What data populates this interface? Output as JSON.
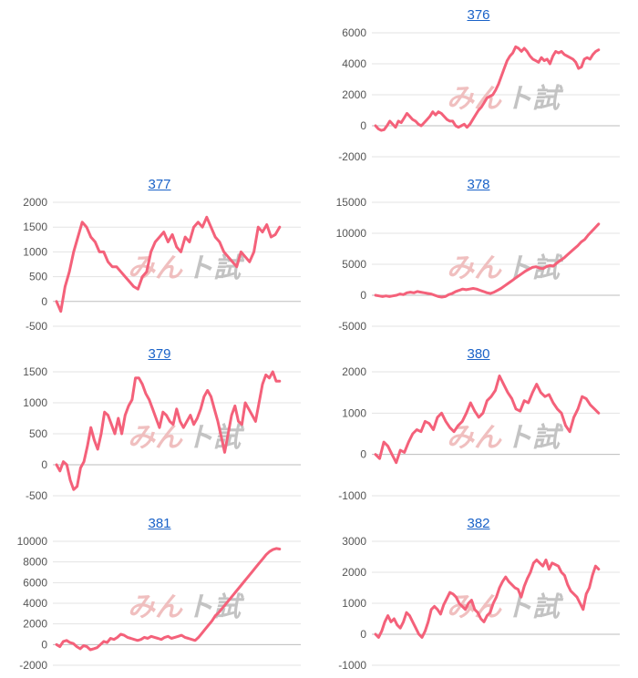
{
  "colors": {
    "line": "#f4617a",
    "grid": "#e3e3e3",
    "axis": "#bdbdbd",
    "tick": "#555555",
    "link": "#1a62c8"
  },
  "watermark": {
    "part1": "みん",
    "part2": "ト試"
  },
  "chart_data": [
    {
      "title": "376",
      "type": "line",
      "ylim": [
        -2000,
        6000
      ],
      "yticks": [
        -2000,
        0,
        2000,
        4000,
        6000
      ],
      "values": [
        0,
        -200,
        -300,
        -250,
        0,
        300,
        100,
        -100,
        300,
        200,
        500,
        800,
        600,
        400,
        300,
        100,
        0,
        200,
        400,
        600,
        900,
        700,
        900,
        800,
        600,
        400,
        300,
        300,
        0,
        -100,
        0,
        100,
        -100,
        100,
        400,
        700,
        1000,
        1200,
        1500,
        1800,
        1900,
        2000,
        2300,
        2700,
        3200,
        3700,
        4200,
        4500,
        4700,
        5100,
        5000,
        4800,
        5000,
        4800,
        4500,
        4300,
        4200,
        4100,
        4400,
        4200,
        4300,
        4000,
        4500,
        4800,
        4700,
        4800,
        4600,
        4500,
        4400,
        4300,
        4100,
        3700,
        3800,
        4300,
        4400,
        4300,
        4600,
        4800,
        4900
      ]
    },
    {
      "title": "377",
      "type": "line",
      "ylim": [
        -500,
        2000
      ],
      "yticks": [
        -500,
        0,
        500,
        1000,
        1500,
        2000
      ],
      "values": [
        0,
        -200,
        300,
        600,
        1000,
        1300,
        1600,
        1500,
        1300,
        1200,
        1000,
        1000,
        800,
        700,
        700,
        600,
        500,
        400,
        300,
        250,
        500,
        600,
        1000,
        1200,
        1300,
        1400,
        1200,
        1350,
        1100,
        1000,
        1300,
        1200,
        1500,
        1600,
        1500,
        1700,
        1500,
        1300,
        1200,
        1000,
        900,
        800,
        700,
        1000,
        900,
        800,
        1000,
        1500,
        1400,
        1550,
        1300,
        1350,
        1500
      ]
    },
    {
      "title": "378",
      "type": "line",
      "ylim": [
        -5000,
        15000
      ],
      "yticks": [
        -5000,
        0,
        5000,
        10000,
        15000
      ],
      "values": [
        0,
        -100,
        -200,
        -100,
        -200,
        -100,
        0,
        200,
        100,
        400,
        500,
        400,
        600,
        500,
        400,
        300,
        200,
        0,
        -200,
        -300,
        -200,
        100,
        300,
        600,
        800,
        1000,
        900,
        1000,
        1100,
        1000,
        800,
        600,
        400,
        300,
        500,
        800,
        1100,
        1500,
        1900,
        2300,
        2700,
        3100,
        3500,
        3900,
        4200,
        4500,
        4600,
        4400,
        4300,
        4600,
        4800,
        4700,
        5200,
        5600,
        6000,
        6500,
        7000,
        7500,
        8000,
        8600,
        9000,
        9700,
        10300,
        10900,
        11500
      ]
    },
    {
      "title": "379",
      "type": "line",
      "ylim": [
        -500,
        1500
      ],
      "yticks": [
        -500,
        0,
        500,
        1000,
        1500
      ],
      "values": [
        0,
        -100,
        50,
        0,
        -250,
        -400,
        -350,
        -50,
        50,
        300,
        600,
        400,
        250,
        500,
        850,
        800,
        650,
        500,
        750,
        500,
        800,
        950,
        1050,
        1400,
        1400,
        1300,
        1150,
        1050,
        900,
        750,
        600,
        850,
        800,
        700,
        650,
        900,
        700,
        600,
        700,
        800,
        650,
        750,
        900,
        1100,
        1200,
        1100,
        900,
        700,
        450,
        200,
        500,
        800,
        950,
        700,
        650,
        1000,
        900,
        800,
        700,
        1000,
        1300,
        1450,
        1400,
        1500,
        1350,
        1350
      ]
    },
    {
      "title": "380",
      "type": "line",
      "ylim": [
        -1000,
        2000
      ],
      "yticks": [
        -1000,
        0,
        1000,
        2000
      ],
      "values": [
        0,
        -100,
        300,
        200,
        0,
        -200,
        100,
        50,
        300,
        500,
        600,
        550,
        800,
        750,
        600,
        900,
        1000,
        800,
        650,
        550,
        700,
        800,
        1000,
        1250,
        1050,
        900,
        1000,
        1300,
        1400,
        1550,
        1900,
        1700,
        1500,
        1350,
        1100,
        1050,
        1300,
        1250,
        1500,
        1700,
        1500,
        1400,
        1450,
        1250,
        1100,
        1000,
        700,
        550,
        900,
        1100,
        1400,
        1350,
        1200,
        1100,
        1000
      ]
    },
    {
      "title": "381",
      "type": "line",
      "ylim": [
        -2000,
        10000
      ],
      "yticks": [
        -2000,
        0,
        2000,
        4000,
        6000,
        8000,
        10000
      ],
      "values": [
        0,
        -200,
        300,
        400,
        200,
        100,
        -200,
        -400,
        -100,
        -200,
        -500,
        -400,
        -300,
        0,
        300,
        200,
        600,
        500,
        700,
        1000,
        900,
        700,
        600,
        500,
        400,
        500,
        700,
        600,
        800,
        700,
        600,
        500,
        700,
        800,
        600,
        700,
        800,
        900,
        700,
        600,
        500,
        400,
        700,
        1100,
        1500,
        1900,
        2300,
        2800,
        3100,
        3500,
        3900,
        4300,
        4700,
        5100,
        5500,
        5900,
        6300,
        6700,
        7100,
        7500,
        7900,
        8300,
        8700,
        9000,
        9200,
        9300,
        9250
      ]
    },
    {
      "title": "382",
      "type": "line",
      "ylim": [
        -1000,
        3000
      ],
      "yticks": [
        -1000,
        0,
        1000,
        2000,
        3000
      ],
      "values": [
        0,
        -100,
        100,
        400,
        600,
        400,
        500,
        300,
        200,
        400,
        700,
        600,
        400,
        200,
        0,
        -100,
        100,
        400,
        800,
        900,
        800,
        650,
        950,
        1150,
        1350,
        1300,
        1200,
        1000,
        900,
        800,
        1000,
        1100,
        800,
        700,
        500,
        400,
        600,
        700,
        1000,
        1200,
        1500,
        1700,
        1850,
        1700,
        1600,
        1500,
        1450,
        1200,
        1550,
        1800,
        2000,
        2300,
        2400,
        2300,
        2200,
        2400,
        2100,
        2300,
        2250,
        2200,
        2000,
        1900,
        1600,
        1400,
        1300,
        1200,
        1000,
        800,
        1300,
        1500,
        1900,
        2200,
        2100
      ]
    }
  ]
}
